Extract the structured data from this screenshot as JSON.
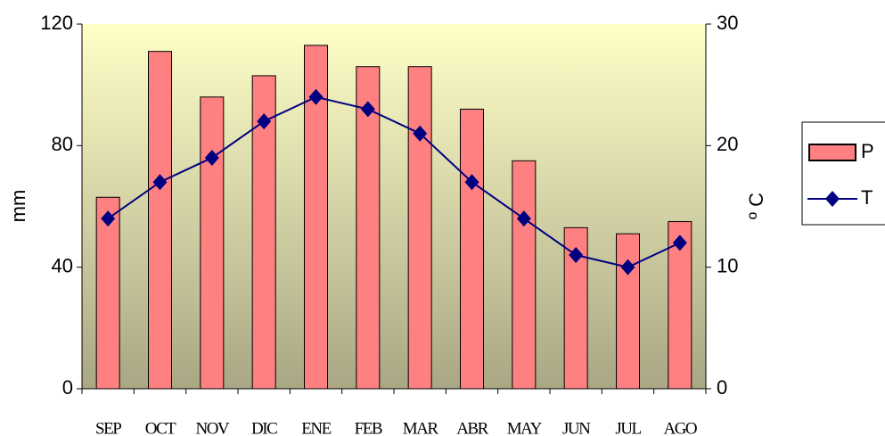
{
  "chart_data": {
    "type": "bar-line",
    "categories": [
      "SEP",
      "OCT",
      "NOV",
      "DIC",
      "ENE",
      "FEB",
      "MAR",
      "ABR",
      "MAY",
      "JUN",
      "JUL",
      "AGO"
    ],
    "series": [
      {
        "name": "P",
        "type": "bar",
        "color": "#ff8080",
        "values": [
          63,
          111,
          96,
          103,
          113,
          106,
          106,
          92,
          75,
          53,
          51,
          55
        ]
      },
      {
        "name": "T",
        "type": "line",
        "axis": "y2",
        "color": "#000080",
        "values": [
          14,
          17,
          19,
          22,
          24,
          23,
          21,
          17,
          14,
          11,
          10,
          12
        ]
      }
    ],
    "ylabel": "mm",
    "y2label": "º C",
    "ylim": [
      0,
      120
    ],
    "yticks": [
      0,
      40,
      80,
      120
    ],
    "y2lim": [
      0,
      30
    ],
    "y2ticks": [
      0,
      10,
      20,
      30
    ]
  }
}
